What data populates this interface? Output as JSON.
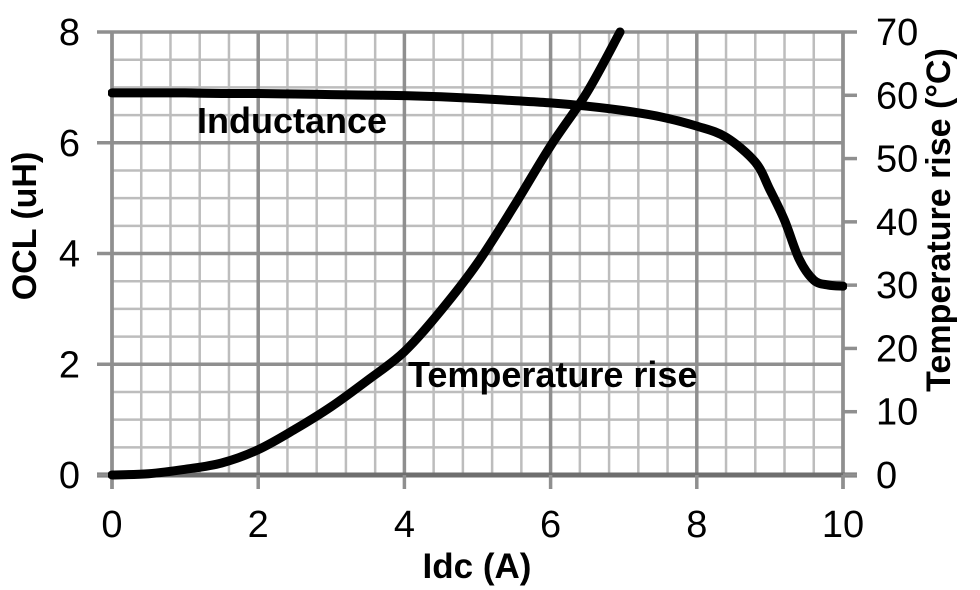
{
  "chart_data": {
    "type": "line",
    "title": "",
    "xlabel": "Idc (A)",
    "ylabel_left": "OCL (uH)",
    "ylabel_right": "Temperature rise (°C)",
    "xlim": [
      0,
      10
    ],
    "ylim_left": [
      0,
      8
    ],
    "ylim_right": [
      0,
      70
    ],
    "x_ticks": [
      0,
      2,
      4,
      6,
      8,
      10
    ],
    "y_left_ticks": [
      0,
      2,
      4,
      6,
      8
    ],
    "y_right_ticks": [
      0,
      10,
      20,
      30,
      40,
      50,
      60,
      70
    ],
    "x_minor_step": 0.4,
    "y_minor_step_left": 0.5,
    "grid": "major+minor",
    "legend_position": "inline-annotations",
    "series": [
      {
        "name": "Inductance",
        "axis": "left",
        "units": "uH",
        "x": [
          0,
          0.5,
          1,
          1.5,
          2,
          2.5,
          3,
          3.5,
          4,
          4.5,
          5,
          5.5,
          6,
          6.5,
          7,
          7.5,
          8,
          8.4,
          8.8,
          9,
          9.2,
          9.4,
          9.6,
          9.8,
          10
        ],
        "y": [
          6.9,
          6.9,
          6.9,
          6.89,
          6.89,
          6.88,
          6.87,
          6.86,
          6.85,
          6.83,
          6.8,
          6.76,
          6.72,
          6.66,
          6.58,
          6.47,
          6.3,
          6.1,
          5.65,
          5.15,
          4.6,
          3.9,
          3.52,
          3.43,
          3.41
        ]
      },
      {
        "name": "Temperature rise",
        "axis": "right",
        "units": "°C",
        "x": [
          0,
          0.5,
          1,
          1.5,
          2,
          2.5,
          3,
          3.5,
          4,
          4.5,
          5,
          5.5,
          6,
          6.5,
          6.95
        ],
        "y": [
          0,
          0.2,
          0.9,
          1.9,
          4.0,
          7.2,
          10.8,
          15.0,
          19.5,
          26.0,
          33.5,
          42.5,
          52.0,
          60.5,
          70.0
        ]
      }
    ]
  },
  "colors": {
    "background": "#ffffff",
    "curve": "#000000",
    "grid_minor": "#bdbdbd",
    "grid_major": "#8f8f8f",
    "axis_line": "#6e6e6e",
    "tick_mark": "#8f8f8f",
    "text": "#000000"
  }
}
